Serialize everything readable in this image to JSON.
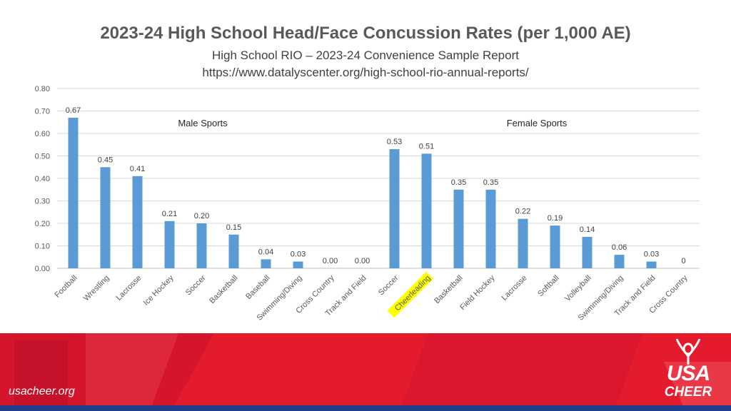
{
  "slide": {
    "title": "2023-24 High School Head/Face Concussion Rates (per 1,000 AE)",
    "subtitle": "High School RIO – 2023-24 Convenience Sample Report",
    "url": "https://www.datalyscenter.org/high-school-rio-annual-reports/",
    "footer_text": "usacheer.org",
    "logo_top": "USA",
    "logo_bottom": "CHEER"
  },
  "colors": {
    "bar": "#5B9BD5",
    "highlight": "#FFFF00",
    "footer_red": "#E31B2C",
    "footer_navy": "#1F3E8C"
  },
  "chart_data": {
    "type": "bar",
    "ylim": [
      0,
      0.8
    ],
    "yticks": [
      "0.00",
      "0.10",
      "0.20",
      "0.30",
      "0.40",
      "0.50",
      "0.60",
      "0.70",
      "0.80"
    ],
    "grid": true,
    "annotations": [
      "Male Sports",
      "Female Sports"
    ],
    "highlighted_category": "Cheerleading",
    "categories": [
      "Football",
      "Wrestling",
      "Lacrosse",
      "Ice Hockey",
      "Soccer",
      "Basketball",
      "Baseball",
      "Swimming/Diving",
      "Cross Country",
      "Track and Field",
      "Soccer",
      "Cheerleading",
      "Basketball",
      "Field Hockey",
      "Lacrosse",
      "Softball",
      "Volleyball",
      "Swimming/Diving",
      "Track and Field",
      "Cross Country"
    ],
    "values": [
      0.67,
      0.45,
      0.41,
      0.21,
      0.2,
      0.15,
      0.04,
      0.03,
      0.0,
      0.0,
      0.53,
      0.51,
      0.35,
      0.35,
      0.22,
      0.19,
      0.14,
      0.06,
      0.03,
      0
    ],
    "data_labels": [
      "0.67",
      "0.45",
      "0.41",
      "0.21",
      "0.20",
      "0.15",
      "0.04",
      "0.03",
      "0.00",
      "0.00",
      "0.53",
      "0.51",
      "0.35",
      "0.35",
      "0.22",
      "0.19",
      "0.14",
      "0.06",
      "0.03",
      "0"
    ]
  }
}
